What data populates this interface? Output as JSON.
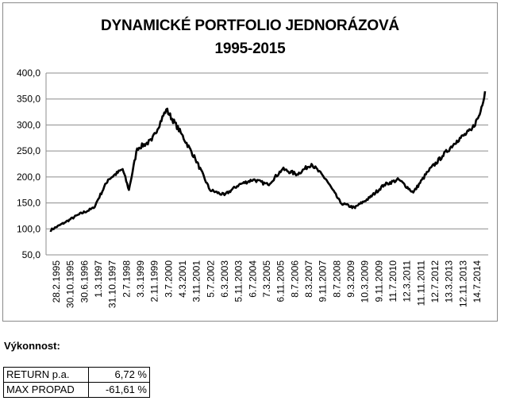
{
  "chart_data": {
    "type": "line",
    "title": "DYNAMICKÉ PORTFOLIO JEDNORÁZOVÁ",
    "subtitle": "1995-2015",
    "xlabel": "",
    "ylabel": "",
    "ylim": [
      50,
      400
    ],
    "yticks": [
      "400,0",
      "350,0",
      "300,0",
      "250,0",
      "200,0",
      "150,0",
      "100,0",
      "50,0"
    ],
    "xticks": [
      "28.2.1995",
      "30.10.1995",
      "30.6.1996",
      "1.3.1997",
      "31.10.1997",
      "2.7.1998",
      "3.3.1999",
      "2.11.1999",
      "3.7.2000",
      "4.3.2001",
      "3.11.2001",
      "5.7.2002",
      "6.3.2003",
      "5.11.2003",
      "6.7.2004",
      "7.3.2005",
      "6.11.2005",
      "8.7.2006",
      "8.3.2007",
      "9.11.2007",
      "8.7.2008",
      "9.3.2009",
      "10.3.2009",
      "9.11.2009",
      "11.7.2010",
      "12.3.2011",
      "11.11.2011",
      "12.7.2012",
      "13.3.2013",
      "12.11.2013",
      "14.7.2014"
    ],
    "grid": true,
    "legend": "none",
    "series": [
      {
        "color": "#000000",
        "x": [
          "28.2.1995",
          "30.10.1995",
          "30.6.1996",
          "1.3.1997",
          "31.10.1997",
          "2.7.1998",
          "15.10.1998",
          "3.3.1999",
          "2.11.1999",
          "3.7.2000",
          "4.3.2001",
          "3.11.2001",
          "5.7.2002",
          "6.3.2003",
          "5.11.2003",
          "6.7.2004",
          "7.3.2005",
          "6.11.2005",
          "8.7.2006",
          "8.3.2007",
          "9.11.2007",
          "8.7.2008",
          "9.3.2009",
          "10.3.2009",
          "9.11.2009",
          "11.7.2010",
          "12.3.2011",
          "11.11.2011",
          "12.7.2012",
          "13.3.2013",
          "12.11.2013",
          "14.7.2014",
          "1.12.2014",
          "28.2.2015"
        ],
        "y": [
          97,
          112,
          128,
          140,
          195,
          215,
          175,
          255,
          270,
          330,
          285,
          235,
          175,
          165,
          185,
          195,
          185,
          215,
          205,
          225,
          195,
          150,
          140,
          142,
          160,
          185,
          195,
          170,
          210,
          240,
          270,
          290,
          320,
          365
        ]
      }
    ]
  },
  "performance": {
    "heading": "Výkonnost:",
    "rows": [
      {
        "label": "RETURN p.a.",
        "value": "6,72 %"
      },
      {
        "label": "MAX PROPAD",
        "value": "-61,61 %"
      }
    ]
  }
}
